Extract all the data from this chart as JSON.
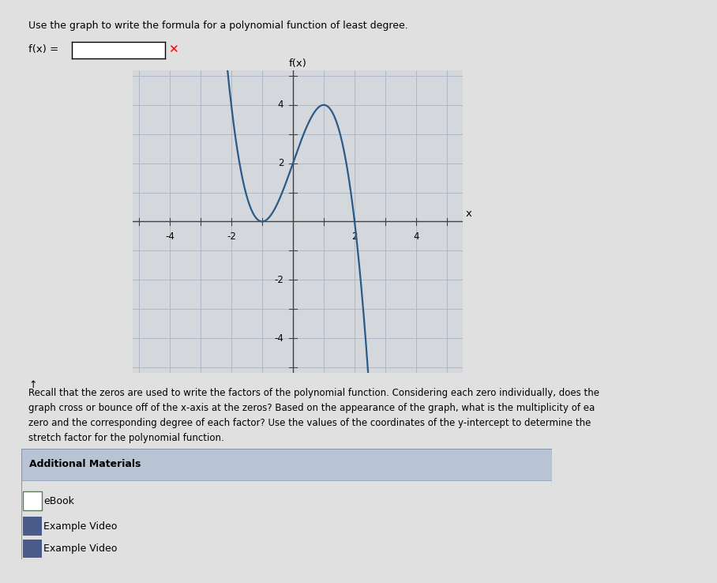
{
  "title": "f(x)",
  "xlabel": "x",
  "xlim": [
    -5.2,
    5.5
  ],
  "ylim": [
    -5.2,
    5.2
  ],
  "xticks": [
    -4,
    -2,
    2,
    4
  ],
  "yticks": [
    -4,
    -2,
    2,
    4
  ],
  "curve_color": "#2a5a8a",
  "curve_linewidth": 1.6,
  "grid_color": "#aab4c4",
  "grid_linewidth": 0.6,
  "axis_linewidth": 1.0,
  "background_color": "#d8d8d8",
  "plot_bg_color": "#d4d8dc",
  "heading_text": "Use the graph to write the formula for a polynomial function of least degree.",
  "fx_label_text": "f(x) =",
  "additional_text": "Recall that the zeros are used to write the factors of the polynomial function. Considering each zero individually, does the\ngraph cross or bounce off of the x-axis at the zeros? Based on the appearance of the graph, what is the multiplicity of ea\nzero and the corresponding degree of each factor? Use the values of the coordinates of the y-intercept to determine the\nstretch factor for the polynomial function.",
  "additional_materials_title": "Additional Materials",
  "materials": [
    "eBook",
    "Example Video",
    "Example Video"
  ],
  "page_bg": "#e0e0e0",
  "white_bg": "#f8f8f8"
}
